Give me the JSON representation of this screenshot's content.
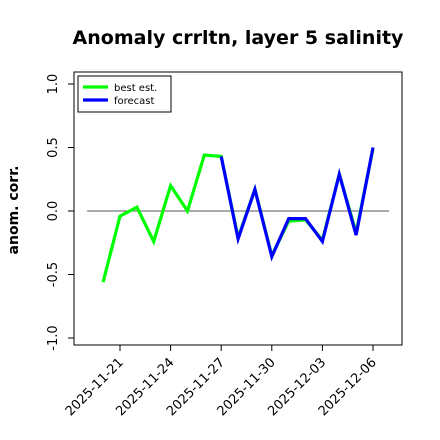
{
  "chart_data": {
    "type": "line",
    "title": "Anomaly crrltn, layer 5 salinity",
    "ylabel": "anom. corr.",
    "xlabel": "",
    "ylim": [
      -1.0,
      1.0
    ],
    "yticks": [
      -1.0,
      -0.5,
      0.0,
      0.5,
      1.0
    ],
    "ytick_labels": [
      "-1.0",
      "-0.5",
      "0.0",
      "0.5",
      "1.0"
    ],
    "xticks": [
      "2025-11-21",
      "2025-11-24",
      "2025-11-27",
      "2025-11-30",
      "2025-12-03",
      "2025-12-06"
    ],
    "xtick_colors": [
      "#000000",
      "#000000",
      "#008000",
      "#000000",
      "#000000",
      "#000000"
    ],
    "x": [
      "2025-11-20",
      "2025-11-21",
      "2025-11-22",
      "2025-11-23",
      "2025-11-24",
      "2025-11-25",
      "2025-11-26",
      "2025-11-27",
      "2025-11-28",
      "2025-11-29",
      "2025-11-30",
      "2025-12-01",
      "2025-12-02",
      "2025-12-03",
      "2025-12-04",
      "2025-12-05",
      "2025-12-06"
    ],
    "reference_line": 0.0,
    "legend_position": "top-left",
    "grid": false,
    "series": [
      {
        "name": "best est.",
        "color": "#00ff00",
        "x": [
          "2025-11-20",
          "2025-11-21",
          "2025-11-22",
          "2025-11-23",
          "2025-11-24",
          "2025-11-25",
          "2025-11-26",
          "2025-11-27",
          "2025-11-28",
          "2025-11-29",
          "2025-11-30",
          "2025-12-01",
          "2025-12-02",
          "2025-12-03",
          "2025-12-04",
          "2025-12-05",
          "2025-12-06"
        ],
        "values": [
          -0.56,
          -0.04,
          0.03,
          -0.24,
          0.2,
          0.0,
          0.44,
          0.43,
          -0.21,
          0.17,
          -0.35,
          -0.08,
          -0.07,
          -0.23,
          0.29,
          -0.17,
          0.49
        ]
      },
      {
        "name": "forecast",
        "color": "#0000ff",
        "x": [
          "2025-11-27",
          "2025-11-28",
          "2025-11-29",
          "2025-11-30",
          "2025-12-01",
          "2025-12-02",
          "2025-12-03",
          "2025-12-04",
          "2025-12-05",
          "2025-12-06"
        ],
        "values": [
          0.43,
          -0.22,
          0.17,
          -0.36,
          -0.06,
          -0.06,
          -0.24,
          0.29,
          -0.19,
          0.5
        ]
      }
    ]
  }
}
